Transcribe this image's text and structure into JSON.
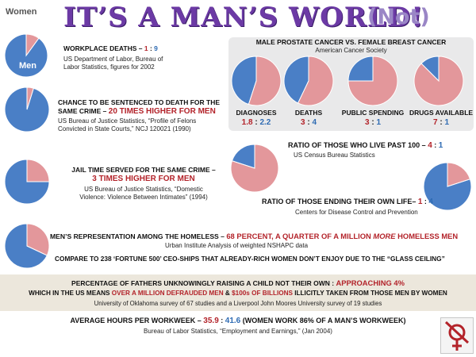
{
  "title": {
    "main": "IT’S A MAN’S WORLD!",
    "not": "(Not)"
  },
  "pie_labels": {
    "women": "Women",
    "men": "Men"
  },
  "colors": {
    "men": "#4a7fc6",
    "women": "#e3979b",
    "red_text": "#b3232a",
    "blue_text": "#2e6bb3",
    "title": "#6c3aa5"
  },
  "workplace": {
    "head": "WORKPLACE DEATHS – ",
    "ratio_a": "1",
    "ratio_sep": " : ",
    "ratio_b": "9",
    "src1": "US Department of Labor, Bureau of",
    "src2": "Labor Statistics, figures for 2002",
    "women_fraction": 0.1
  },
  "death_sentence": {
    "line1": "CHANCE TO BE SENTENCED TO DEATH FOR THE",
    "line2a": "SAME CRIME –",
    "line2b": "20 TIMES HIGHER FOR MEN",
    "src1": "US Bureau of Justice Statistics, “Profile of Felons",
    "src2": "Convicted in State Courts,” NCJ 120021 (1990)",
    "women_fraction": 0.048
  },
  "jail": {
    "line1": "JAIL TIME SERVED FOR THE SAME CRIME –",
    "line2": "3 TIMES HIGHER FOR MEN",
    "src1": "US Bureau of Justice Statistics, “Domestic",
    "src2": "Violence: Violence Between Intimates” (1994)",
    "women_fraction": 0.25
  },
  "cancer": {
    "title": "MALE PROSTATE CANCER VS. FEMALE BREAST CANCER",
    "source": "American Cancer Society",
    "items": [
      {
        "label": "DIAGNOSES",
        "a": "1.8",
        "b": "2.2",
        "women_fraction": 0.55
      },
      {
        "label": "DEATHS",
        "a": "3",
        "b": "4",
        "women_fraction": 0.571
      },
      {
        "label": "PUBLIC SPENDING",
        "a": "3",
        "b": "1",
        "women_fraction": 0.75
      },
      {
        "label": "DRUGS AVAILABLE",
        "a": "7",
        "b": "1",
        "women_fraction": 0.875
      }
    ],
    "sep": " : "
  },
  "past100": {
    "head": "RATIO OF THOSE WHO LIVE PAST 100 – ",
    "a": "4",
    "sep": " : ",
    "b": "1",
    "src": "US Census Bureau Statistics",
    "women_fraction": 0.8
  },
  "suicide": {
    "head": "RATIO OF THOSE ENDING THEIR OWN LIFE– ",
    "a": "1",
    "sep": " : ",
    "b": "4",
    "src": "Centers for Disease Control and Prevention",
    "women_fraction": 0.2
  },
  "homeless": {
    "head_a": "MEN’S REPRESENTATION AMONG THE HOMELESS – ",
    "head_b": "68 PERCENT, A QUARTER OF  A MILLION ",
    "head_c": "MORE",
    "head_d": " HOMELESS MEN",
    "src": "Urban Institute Analysis of weighted NSHAPC data",
    "line2": "COMPARE TO 238 ‘FORTUNE 500’ CEO-SHIPS THAT ALREADY-RICH WOMEN DON’T ENJOY DUE TO THE “GLASS CEILING”",
    "women_fraction": 0.32
  },
  "fathers": {
    "line1a": "PERCENTAGE OF FATHERS UNKNOWINGLY RAISING A CHILD NOT THEIR OWN : ",
    "line1b": "APPROACHING 4%",
    "line2a": "WHICH IN THE US MEANS ",
    "line2b": "OVER A MILLION DEFRAUDED MEN",
    "line2c": " & ",
    "line2d": "$100s OF BILLIONS",
    "line2e": " ILLICITLY TAKEN FROM THOSE MEN BY WOMEN",
    "src": "University of Oklahoma survey of 67 studies and a Liverpool John Moores University survey of 19 studies"
  },
  "workweek": {
    "head": "AVERAGE HOURS PER WORKWEEK – ",
    "a": "35.9",
    "sep": " : ",
    "b": "41.6",
    "tail": " (WOMEN WORK 86% OF A MAN’S WORKWEEK)",
    "src": "Bureau of Labor Statistics, “Employment and Earnings,” (Jan 2004)"
  }
}
